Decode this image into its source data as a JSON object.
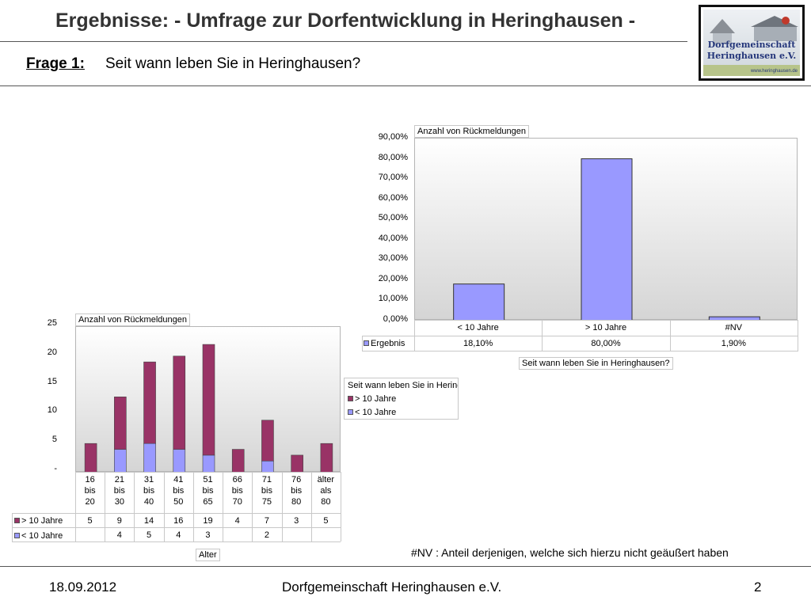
{
  "slide": {
    "title": "Ergebnisse: - Umfrage zur Dorfentwicklung in Heringhausen -",
    "question_label": "Frage 1:",
    "question_text": "Seit wann leben Sie in Heringhausen?",
    "note": "#NV :  Anteil derjenigen, welche sich hierzu nicht geäußert haben",
    "footer_date": "18.09.2012",
    "footer_org": "Dorfgemeinschaft Heringhausen e.V.",
    "footer_page": "2"
  },
  "logo": {
    "line1": "Dorfgemeinschaft",
    "line2": "Heringhausen e.V.",
    "sub": "www.heringhausen.de"
  },
  "chart_data": [
    {
      "type": "bar",
      "tag": "Anzahl von Rückmeldungen",
      "categories": [
        "< 10 Jahre",
        "> 10 Jahre",
        "#NV"
      ],
      "series": [
        {
          "name": "Ergebnis",
          "values": [
            18.1,
            80.0,
            1.9
          ],
          "labels": [
            "18,10%",
            "80,00%",
            "1,90%"
          ]
        }
      ],
      "yticks": [
        "0,00%",
        "10,00%",
        "20,00%",
        "30,00%",
        "40,00%",
        "50,00%",
        "60,00%",
        "70,00%",
        "80,00%",
        "90,00%"
      ],
      "ylim": [
        0,
        90
      ],
      "xlabel": "Seit wann leben Sie in Heringhausen?",
      "color": "#9999ff",
      "grid": false
    },
    {
      "type": "bar",
      "stacked": true,
      "tag": "Anzahl von Rückmeldungen",
      "categories": [
        [
          "16",
          "bis",
          "20"
        ],
        [
          "21",
          "bis",
          "30"
        ],
        [
          "31",
          "bis",
          "40"
        ],
        [
          "41",
          "bis",
          "50"
        ],
        [
          "51",
          "bis",
          "65"
        ],
        [
          "66",
          "bis",
          "70"
        ],
        [
          "71",
          "bis",
          "75"
        ],
        [
          "76",
          "bis",
          "80"
        ],
        [
          "älter",
          "als",
          "80"
        ]
      ],
      "series": [
        {
          "name": "> 10 Jahre",
          "values": [
            5,
            9,
            14,
            16,
            19,
            4,
            7,
            3,
            5
          ],
          "labels": [
            "5",
            "9",
            "14",
            "16",
            "19",
            "4",
            "7",
            "3",
            "5"
          ],
          "color": "#993366"
        },
        {
          "name": "< 10 Jahre",
          "values": [
            0,
            4,
            5,
            4,
            3,
            0,
            2,
            0,
            0
          ],
          "labels": [
            "",
            "4",
            "5",
            "4",
            "3",
            "",
            "2",
            "",
            ""
          ],
          "color": "#9999ff"
        }
      ],
      "yticks": [
        "-",
        "5",
        "10",
        "15",
        "20",
        "25"
      ],
      "ylim": [
        0,
        25
      ],
      "xlabel": "Alter",
      "legend_title": "Seit wann leben Sie in Heringhausen?",
      "legend_placement": "right",
      "grid": false
    }
  ]
}
